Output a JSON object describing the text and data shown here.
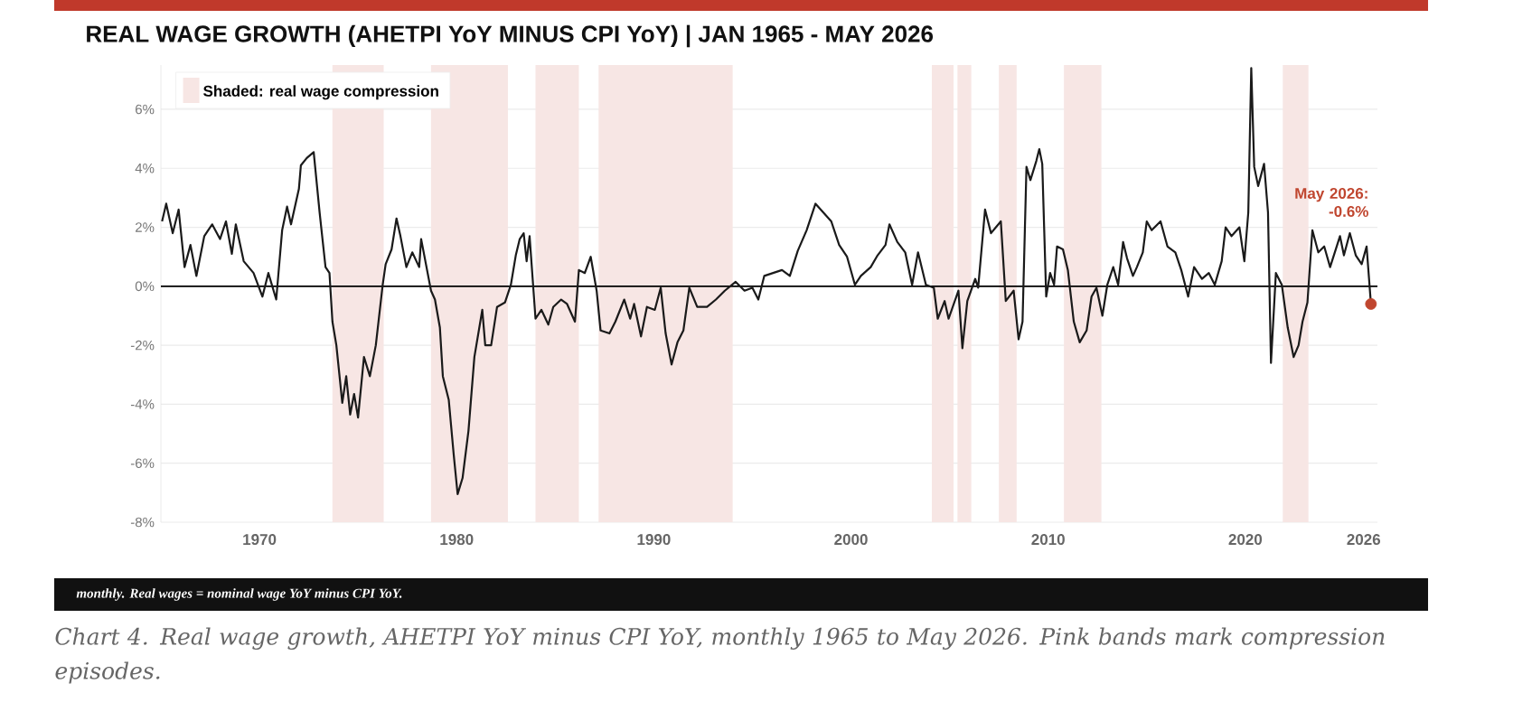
{
  "chart_data": {
    "type": "line",
    "title": "REAL WAGE GROWTH (AHETPI YoY MINUS CPI YoY) | JAN 1965 - MAY 2026",
    "xlim": [
      1965,
      2026.7
    ],
    "ylim": [
      -8,
      7.5
    ],
    "xticks": [
      1970,
      1980,
      1990,
      2000,
      2010,
      2020,
      2026
    ],
    "yticks": [
      {
        "value": -8,
        "label": "-8%"
      },
      {
        "value": -6,
        "label": "-6%"
      },
      {
        "value": -4,
        "label": "-4%"
      },
      {
        "value": -2,
        "label": "-2%"
      },
      {
        "value": 0,
        "label": "0%"
      },
      {
        "value": 2,
        "label": "2%"
      },
      {
        "value": 4,
        "label": "4%"
      },
      {
        "value": 6,
        "label": "6%"
      }
    ],
    "grid": "y",
    "legend": "top left",
    "series": [
      {
        "color": "#1a1a1a",
        "marker": "none",
        "line_style": "solid",
        "x": [
          1965.06,
          1965.27,
          1965.6,
          1965.9,
          1966.2,
          1966.5,
          1966.8,
          1967.2,
          1967.6,
          1968.0,
          1968.3,
          1968.6,
          1968.8,
          1969.2,
          1969.7,
          1970.15,
          1970.45,
          1970.85,
          1971.15,
          1971.4,
          1971.6,
          1972.0,
          1972.1,
          1972.4,
          1972.75,
          1973.05,
          1973.35,
          1973.55,
          1973.7,
          1973.9,
          1974.2,
          1974.4,
          1974.6,
          1974.8,
          1975.0,
          1975.3,
          1975.6,
          1975.9,
          1976.25,
          1976.4,
          1976.7,
          1976.95,
          1977.15,
          1977.45,
          1977.75,
          1978.1,
          1978.2,
          1978.7,
          1978.9,
          1979.15,
          1979.3,
          1979.6,
          1979.85,
          1980.05,
          1980.3,
          1980.6,
          1980.9,
          1981.3,
          1981.45,
          1981.75,
          1982.05,
          1982.45,
          1982.75,
          1983.0,
          1983.2,
          1983.4,
          1983.55,
          1983.7,
          1984.0,
          1984.3,
          1984.65,
          1984.9,
          1985.3,
          1985.6,
          1986.0,
          1986.2,
          1986.5,
          1986.8,
          1987.1,
          1987.3,
          1987.75,
          1988.05,
          1988.5,
          1988.8,
          1989.0,
          1989.35,
          1989.65,
          1990.05,
          1990.35,
          1990.6,
          1990.9,
          1991.2,
          1991.5,
          1991.8,
          1992.2,
          1992.7,
          1993.15,
          1993.6,
          1994.15,
          1994.6,
          1995.0,
          1995.3,
          1995.6,
          1996.05,
          1996.5,
          1996.9,
          1997.3,
          1997.75,
          1998.2,
          1998.6,
          1999.0,
          1999.4,
          1999.8,
          2000.2,
          2000.5,
          2001.0,
          2001.35,
          2001.75,
          2001.95,
          2002.35,
          2002.75,
          2003.1,
          2003.4,
          2003.8,
          2004.2,
          2004.4,
          2004.75,
          2004.95,
          2005.45,
          2005.65,
          2005.9,
          2006.3,
          2006.45,
          2006.8,
          2007.1,
          2007.6,
          2007.85,
          2008.25,
          2008.5,
          2008.7,
          2008.9,
          2009.1,
          2009.4,
          2009.55,
          2009.7,
          2009.9,
          2010.1,
          2010.3,
          2010.45,
          2010.75,
          2011.0,
          2011.3,
          2011.6,
          2011.95,
          2012.2,
          2012.45,
          2012.75,
          2013.0,
          2013.3,
          2013.55,
          2013.8,
          2014.0,
          2014.3,
          2014.5,
          2014.8,
          2015.0,
          2015.25,
          2015.7,
          2016.05,
          2016.45,
          2016.75,
          2017.1,
          2017.4,
          2017.8,
          2018.15,
          2018.45,
          2018.8,
          2019.0,
          2019.3,
          2019.7,
          2019.95,
          2020.15,
          2020.3,
          2020.45,
          2020.65,
          2020.95,
          2021.15,
          2021.3,
          2021.55,
          2021.85,
          2022.15,
          2022.45,
          2022.7,
          2022.9,
          2023.15,
          2023.4,
          2023.7,
          2024.0,
          2024.3,
          2024.8,
          2025.0,
          2025.3,
          2025.6,
          2025.9,
          2026.15,
          2026.37
        ],
        "values": [
          2.2,
          2.8,
          1.8,
          2.6,
          0.65,
          1.4,
          0.35,
          1.7,
          2.1,
          1.6,
          2.2,
          1.1,
          2.1,
          0.85,
          0.45,
          -0.35,
          0.45,
          -0.45,
          1.9,
          2.7,
          2.1,
          3.3,
          4.1,
          4.35,
          4.55,
          2.5,
          0.65,
          0.45,
          -1.2,
          -2.0,
          -3.95,
          -3.05,
          -4.35,
          -3.65,
          -4.45,
          -2.4,
          -3.05,
          -2.0,
          0.05,
          0.75,
          1.25,
          2.3,
          1.7,
          0.65,
          1.15,
          0.65,
          1.6,
          -0.15,
          -0.45,
          -1.4,
          -3.05,
          -3.85,
          -5.7,
          -7.05,
          -6.5,
          -4.9,
          -2.4,
          -0.8,
          -2.0,
          -2.0,
          -0.7,
          -0.55,
          0.05,
          1.05,
          1.6,
          1.8,
          0.85,
          1.7,
          -1.1,
          -0.8,
          -1.3,
          -0.7,
          -0.45,
          -0.6,
          -1.2,
          0.55,
          0.45,
          1.0,
          -0.15,
          -1.5,
          -1.6,
          -1.2,
          -0.45,
          -1.1,
          -0.6,
          -1.7,
          -0.7,
          -0.8,
          -0.05,
          -1.6,
          -2.65,
          -1.9,
          -1.5,
          -0.05,
          -0.7,
          -0.7,
          -0.45,
          -0.15,
          0.15,
          -0.15,
          -0.05,
          -0.45,
          0.35,
          0.45,
          0.55,
          0.35,
          1.2,
          1.9,
          2.8,
          2.5,
          2.2,
          1.4,
          1.0,
          0.05,
          0.35,
          0.65,
          1.05,
          1.4,
          2.1,
          1.5,
          1.15,
          0.05,
          1.15,
          0.05,
          -0.05,
          -1.1,
          -0.5,
          -1.1,
          -0.15,
          -2.1,
          -0.5,
          0.25,
          -0.05,
          2.6,
          1.8,
          2.2,
          -0.5,
          -0.15,
          -1.8,
          -1.2,
          4.05,
          3.6,
          4.25,
          4.65,
          4.15,
          -0.35,
          0.45,
          0.05,
          1.35,
          1.25,
          0.55,
          -1.2,
          -1.9,
          -1.5,
          -0.35,
          -0.05,
          -1.0,
          0.05,
          0.65,
          0.05,
          1.5,
          0.95,
          0.35,
          0.65,
          1.15,
          2.2,
          1.9,
          2.2,
          1.35,
          1.15,
          0.55,
          -0.35,
          0.65,
          0.25,
          0.45,
          0.05,
          0.85,
          2.0,
          1.7,
          2.0,
          0.85,
          2.5,
          7.4,
          4.05,
          3.4,
          4.15,
          2.5,
          -2.6,
          0.45,
          0.05,
          -1.4,
          -2.4,
          -2.0,
          -1.2,
          -0.55,
          1.9,
          1.15,
          1.35,
          0.65,
          1.7,
          1.05,
          1.8,
          1.05,
          0.75,
          1.35,
          -0.6
        ]
      },
      {
        "type": "scatter",
        "color": "#c0462f",
        "marker": "circle",
        "x": [
          2026.37
        ],
        "values": [
          -0.6
        ]
      }
    ],
    "ref_lines": [
      {
        "axis": "y",
        "value": 0,
        "color": "#000000"
      }
    ],
    "bands": [
      {
        "axis": "x",
        "from": 1973.7,
        "to": 1976.3,
        "color": "#f7e6e4",
        "label": "Shaded: real wage compression"
      },
      {
        "axis": "x",
        "from": 1978.7,
        "to": 1982.6,
        "color": "#f7e6e4"
      },
      {
        "axis": "x",
        "from": 1984.0,
        "to": 1986.2,
        "color": "#f7e6e4"
      },
      {
        "axis": "x",
        "from": 1987.2,
        "to": 1994.0,
        "color": "#f7e6e4"
      },
      {
        "axis": "x",
        "from": 2004.1,
        "to": 2005.2,
        "color": "#f7e6e4"
      },
      {
        "axis": "x",
        "from": 2005.4,
        "to": 2006.1,
        "color": "#f7e6e4"
      },
      {
        "axis": "x",
        "from": 2007.5,
        "to": 2008.4,
        "color": "#f7e6e4"
      },
      {
        "axis": "x",
        "from": 2010.8,
        "to": 2012.7,
        "color": "#f7e6e4"
      },
      {
        "axis": "x",
        "from": 2021.9,
        "to": 2023.2,
        "color": "#f7e6e4"
      }
    ],
    "annotations": [
      "May 2026: -0.6%",
      "monthly. Real wages = nominal wage YoY minus CPI YoY.",
      "Chart 4. Real wage growth, AHETPI YoY minus CPI YoY, monthly 1965 to May 2026. Pink bands mark compression episodes."
    ]
  }
}
